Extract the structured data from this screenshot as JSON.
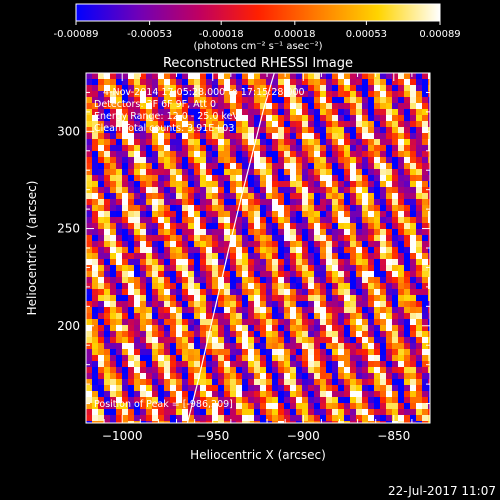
{
  "colorbar": {
    "ticks": [
      "-0.00089",
      "-0.00053",
      "-0.00018",
      "0.00018",
      "0.00053",
      "0.00089"
    ],
    "tick_values": [
      -0.00089,
      -0.00053,
      -0.00018,
      0.00018,
      0.00053,
      0.00089
    ],
    "range": [
      -0.00089,
      0.00089
    ],
    "units_label": "(photons cm⁻² s⁻¹ asec⁻²)",
    "colormap": [
      "#0000ff",
      "#6f00b8",
      "#c00060",
      "#ff2000",
      "#ff7a00",
      "#ffd400",
      "#ffffff"
    ]
  },
  "chart_data": {
    "type": "heatmap",
    "title": "Reconstructed RHESSI Image",
    "xlabel": "Heliocentric X (arcsec)",
    "ylabel": "Heliocentric Y (arcsec)",
    "xlim": [
      -1020,
      -830
    ],
    "ylim": [
      150,
      330
    ],
    "xticks": [
      -1000,
      -950,
      -900,
      -850
    ],
    "xtick_labels": [
      "−1000",
      "−950",
      "−900",
      "−850"
    ],
    "yticks": [
      200,
      250,
      300
    ],
    "ytick_labels": [
      "200",
      "250",
      "300"
    ],
    "annotations": [
      "4-Nov-2014 17:05:28.000 to 17:15:28.000",
      "Detectors: 3F 6F 9F, Att 0",
      "Energy Range: 12.0 - 25.0 keV",
      "Clean    Total counts: 3.91E+03"
    ],
    "peak_label": "Position of Peak = [-986,209]",
    "peak_position": [
      -986,
      209
    ],
    "limb_curve": {
      "x": [
        -964,
        -958,
        -952,
        -946,
        -940,
        -934,
        -928,
        -922,
        -916
      ],
      "y": [
        150,
        172,
        196,
        220,
        244,
        267,
        289,
        311,
        330
      ]
    }
  },
  "footer": {
    "timestamp": "22-Jul-2017 11:07"
  }
}
